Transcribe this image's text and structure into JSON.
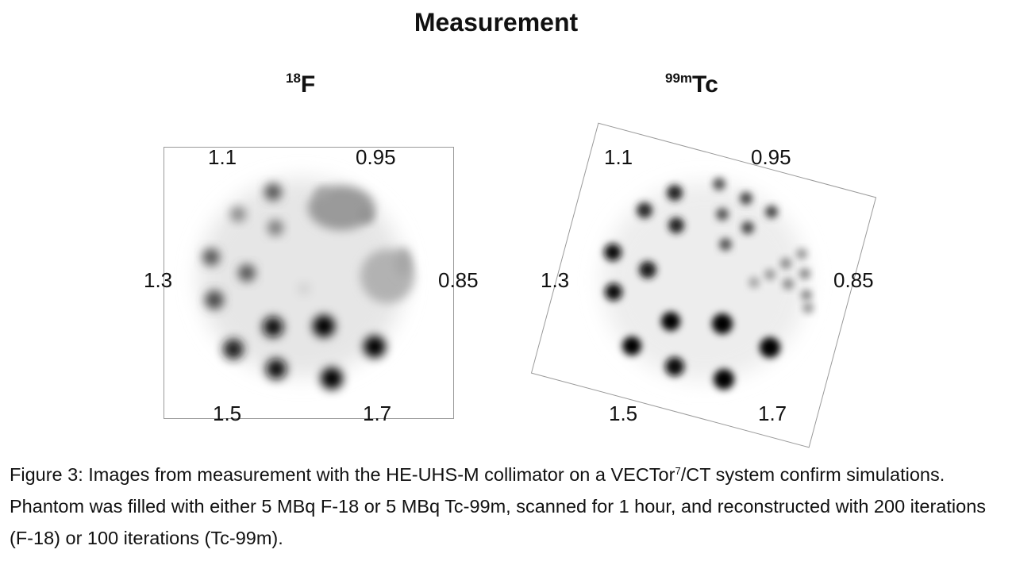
{
  "figure": {
    "title": "Measurement",
    "panels": [
      {
        "id": "f18",
        "isotope_mass": "18",
        "isotope_symbol": "F",
        "labels": [
          "1.1",
          "0.95",
          "1.3",
          "0.85",
          "1.5",
          "1.7"
        ]
      },
      {
        "id": "tc99m",
        "isotope_mass": "99m",
        "isotope_symbol": "Tc",
        "labels": [
          "1.1",
          "0.95",
          "1.3",
          "0.85",
          "1.5",
          "1.7"
        ]
      }
    ],
    "caption": {
      "part1": "Figure 3: Images from measurement with the HE-UHS-M collimator on a VECTor",
      "superscript": "7",
      "part2": "/CT system confirm simulations. Phantom was filled with either 5 MBq F-18 or 5 MBq Tc-99m, scanned for 1 hour, and reconstructed with 200 iterations (F-18) or 100 iterations (Tc-99m)."
    }
  }
}
